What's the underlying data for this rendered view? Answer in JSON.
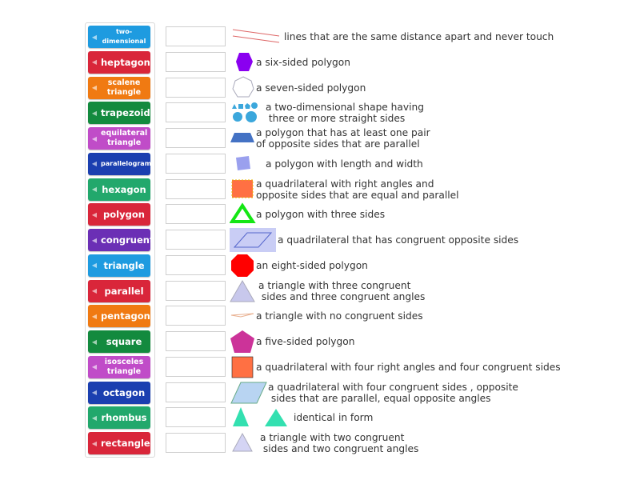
{
  "terms": [
    {
      "label": "two-dimensional",
      "color": "#1e9be0",
      "size": "small"
    },
    {
      "label": "heptagon",
      "color": "#d9263a"
    },
    {
      "label": "scalene triangle",
      "color": "#f07a12",
      "size": "mid"
    },
    {
      "label": "trapezoid",
      "color": "#138a3e"
    },
    {
      "label": "equilateral triangle",
      "color": "#c04cc8",
      "size": "mid"
    },
    {
      "label": "parallelogram",
      "color": "#1b3fb0",
      "size": "small"
    },
    {
      "label": "hexagon",
      "color": "#22a86c"
    },
    {
      "label": "polygon",
      "color": "#d9263a"
    },
    {
      "label": "congruent",
      "color": "#6b2fb5"
    },
    {
      "label": "triangle",
      "color": "#1e9be0"
    },
    {
      "label": "parallel",
      "color": "#d9263a"
    },
    {
      "label": "pentagon",
      "color": "#f07a12"
    },
    {
      "label": "square",
      "color": "#138a3e"
    },
    {
      "label": "isosceles triangle",
      "color": "#c04cc8",
      "size": "mid"
    },
    {
      "label": "octagon",
      "color": "#1b3fb0"
    },
    {
      "label": "rhombus",
      "color": "#22a86c"
    },
    {
      "label": "rectangle",
      "color": "#d9263a"
    }
  ],
  "definitions": [
    {
      "text": "lines that are the same distance apart and never touch",
      "icon": "parallel-lines-icon"
    },
    {
      "text": "a six-sided polygon",
      "icon": "hexagon-icon"
    },
    {
      "text": "a seven-sided polygon",
      "icon": "heptagon-icon"
    },
    {
      "text": "a two-dimensional shape having\n three or more straight sides",
      "icon": "polygons-icon"
    },
    {
      "text": "a polygon that has at least one pair\nof opposite sides that are parallel",
      "icon": "trapezoid-icon"
    },
    {
      "text": "a polygon with length and width",
      "icon": "square-2d-icon"
    },
    {
      "text": "a quadrilateral with right angles and\nopposite sides that are equal and parallel",
      "icon": "rectangle-icon"
    },
    {
      "text": "a polygon with three sides",
      "icon": "triangle-icon"
    },
    {
      "text": "a quadrilateral that has congruent opposite sides",
      "icon": "parallelogram-icon"
    },
    {
      "text": "an eight-sided polygon",
      "icon": "octagon-icon"
    },
    {
      "text": "a triangle with three congruent\n sides and three congruent angles",
      "icon": "equilateral-triangle-icon"
    },
    {
      "text": "a triangle with no congruent sides",
      "icon": "scalene-triangle-icon"
    },
    {
      "text": "a five-sided polygon",
      "icon": "pentagon-icon"
    },
    {
      "text": "a quadrilateral with four right angles and four congruent sides",
      "icon": "square-icon"
    },
    {
      "text": "a quadrilateral with four congruent sides , opposite\n sides that are parallel, equal opposite angles",
      "icon": "rhombus-icon"
    },
    {
      "text": "identical in form",
      "icon": "congruent-triangles-icon"
    },
    {
      "text": "a triangle with two congruent\n sides and two congruent angles",
      "icon": "isosceles-triangle-icon"
    }
  ]
}
